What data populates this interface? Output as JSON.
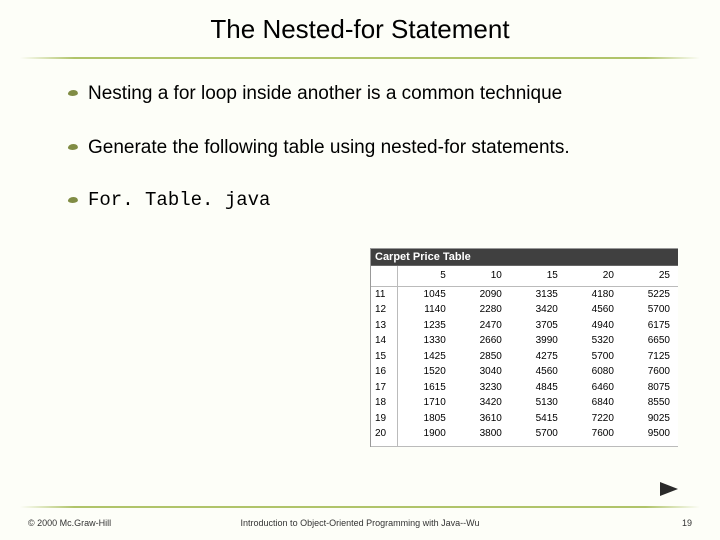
{
  "title": "The Nested-for Statement",
  "bullets": {
    "b1": "Nesting a for loop inside another is a common technique",
    "b2": "Generate the following table using nested-for statements.",
    "b3": "For. Table. java"
  },
  "table": {
    "caption": "Carpet Price Table",
    "col_headers": [
      "",
      "5",
      "10",
      "15",
      "20",
      "25"
    ],
    "rows": [
      [
        "11",
        "1045",
        "2090",
        "3135",
        "4180",
        "5225"
      ],
      [
        "12",
        "1140",
        "2280",
        "3420",
        "4560",
        "5700"
      ],
      [
        "13",
        "1235",
        "2470",
        "3705",
        "4940",
        "6175"
      ],
      [
        "14",
        "1330",
        "2660",
        "3990",
        "5320",
        "6650"
      ],
      [
        "15",
        "1425",
        "2850",
        "4275",
        "5700",
        "7125"
      ],
      [
        "16",
        "1520",
        "3040",
        "4560",
        "6080",
        "7600"
      ],
      [
        "17",
        "1615",
        "3230",
        "4845",
        "6460",
        "8075"
      ],
      [
        "18",
        "1710",
        "3420",
        "5130",
        "6840",
        "8550"
      ],
      [
        "19",
        "1805",
        "3610",
        "5415",
        "7220",
        "9025"
      ],
      [
        "20",
        "1900",
        "3800",
        "5700",
        "7600",
        "9500"
      ]
    ]
  },
  "footer": {
    "left": "© 2000 Mc.Graw-Hill",
    "center": "Introduction to Object-Oriented Programming with Java--Wu",
    "page": "19"
  },
  "colors": {
    "background": "#fdfef8",
    "rule": "#b0c46a",
    "bullet": "#808c44",
    "titlebar": "#404040",
    "play": "#2a2a2a"
  }
}
